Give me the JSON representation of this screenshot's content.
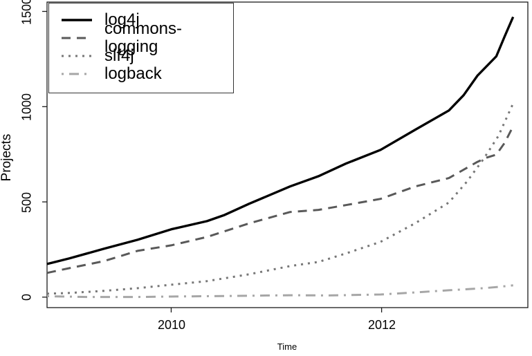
{
  "chart_data": {
    "type": "line",
    "title": "",
    "xlabel": "Time",
    "ylabel": "Projects",
    "grid": false,
    "legend_position": "top-left",
    "x_range": [
      2008.82,
      2013.39
    ],
    "y_range": [
      -55,
      1549
    ],
    "x_ticks": {
      "values": [
        2010,
        2012
      ],
      "labels": [
        "2010",
        "2012"
      ]
    },
    "y_ticks": {
      "values": [
        0,
        500,
        1000,
        1500
      ],
      "labels": [
        "0",
        "500",
        "1000",
        "1500"
      ]
    },
    "axis_color": "#1a1a1a",
    "series": [
      {
        "name": "log4j",
        "color": "#000000",
        "line_style": "solid",
        "points": [
          [
            2008.82,
            174
          ],
          [
            2009.03,
            203
          ],
          [
            2009.36,
            254
          ],
          [
            2009.68,
            301
          ],
          [
            2010.0,
            356
          ],
          [
            2010.34,
            399
          ],
          [
            2010.5,
            430
          ],
          [
            2010.74,
            490
          ],
          [
            2011.13,
            581
          ],
          [
            2011.4,
            635
          ],
          [
            2011.66,
            701
          ],
          [
            2011.99,
            773
          ],
          [
            2012.32,
            879
          ],
          [
            2012.64,
            980
          ],
          [
            2012.78,
            1060
          ],
          [
            2012.91,
            1162
          ],
          [
            2013.09,
            1264
          ],
          [
            2013.17,
            1369
          ],
          [
            2013.25,
            1471
          ]
        ]
      },
      {
        "name": "commons-logging",
        "color": "#595959",
        "line_style": "dashed",
        "points": [
          [
            2008.82,
            127
          ],
          [
            2009.03,
            152
          ],
          [
            2009.36,
            189
          ],
          [
            2009.68,
            243
          ],
          [
            2010.0,
            272
          ],
          [
            2010.34,
            316
          ],
          [
            2010.74,
            387
          ],
          [
            2011.13,
            447
          ],
          [
            2011.4,
            458
          ],
          [
            2011.66,
            483
          ],
          [
            2011.99,
            516
          ],
          [
            2012.32,
            581
          ],
          [
            2012.64,
            625
          ],
          [
            2012.91,
            710
          ],
          [
            2013.0,
            733
          ],
          [
            2013.09,
            748
          ],
          [
            2013.17,
            810
          ],
          [
            2013.25,
            897
          ]
        ]
      },
      {
        "name": "slf4j",
        "color": "#777777",
        "line_style": "dotted",
        "points": [
          [
            2008.82,
            18
          ],
          [
            2009.03,
            22
          ],
          [
            2009.36,
            33
          ],
          [
            2009.68,
            47
          ],
          [
            2010.0,
            65
          ],
          [
            2010.34,
            84
          ],
          [
            2010.74,
            120
          ],
          [
            2011.13,
            163
          ],
          [
            2011.4,
            185
          ],
          [
            2011.66,
            229
          ],
          [
            2011.99,
            290
          ],
          [
            2012.32,
            388
          ],
          [
            2012.64,
            497
          ],
          [
            2012.81,
            606
          ],
          [
            2012.97,
            726
          ],
          [
            2013.11,
            846
          ],
          [
            2013.25,
            1017
          ]
        ]
      },
      {
        "name": "logback",
        "color": "#a6a6a6",
        "line_style": "dashdot",
        "points": [
          [
            2008.82,
            5
          ],
          [
            2009.2,
            1
          ],
          [
            2009.68,
            1
          ],
          [
            2010.0,
            3
          ],
          [
            2010.5,
            6
          ],
          [
            2011.13,
            10
          ],
          [
            2011.5,
            9
          ],
          [
            2011.99,
            14
          ],
          [
            2012.32,
            25
          ],
          [
            2012.64,
            36
          ],
          [
            2012.97,
            47
          ],
          [
            2013.11,
            54
          ],
          [
            2013.25,
            62
          ]
        ]
      }
    ]
  }
}
